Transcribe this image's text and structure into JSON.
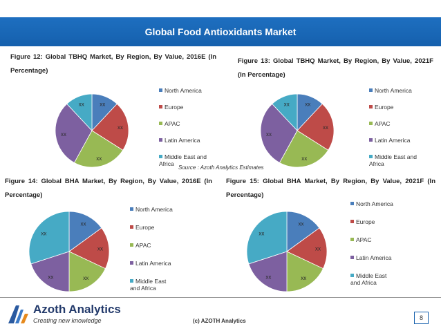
{
  "header": {
    "title": "Global Food Antioxidants Market"
  },
  "colors": {
    "north_america": "#4a7ebb",
    "europe": "#be4b48",
    "apac": "#98b954",
    "latin_america": "#7d60a0",
    "middle_east_africa": "#46aac5"
  },
  "figures": [
    {
      "title": "Figure 12: Global TBHQ Market, By Region, By Value, 2016E (In Percentage)",
      "legend": [
        "North America",
        "Europe",
        "APAC",
        "Latin America",
        "Middle East and Africa"
      ],
      "slice_labels": [
        "xx",
        "xx",
        "xx",
        "xx",
        "xx"
      ]
    },
    {
      "title": "Figure 13: Global TBHQ Market, By Region, By Value, 2021F (In Percentage)",
      "legend": [
        "North America",
        "Europe",
        "APAC",
        "Latin America",
        "Middle East and Africa"
      ],
      "slice_labels": [
        "xx",
        "xx",
        "xx",
        "xx",
        "xx"
      ]
    },
    {
      "title": "Figure 14: Global BHA Market, By Region, By Value, 2016E (In Percentage)",
      "legend": [
        "North America",
        "Europe",
        "APAC",
        "Latin America",
        "Middle East and Africa"
      ],
      "slice_labels": [
        "xx",
        "xx",
        "xx",
        "xx",
        "xx"
      ]
    },
    {
      "title": "Figure 15: Global BHA Market, By Region, By Value, 2021F (In Percentage)",
      "legend": [
        "North America",
        "Europe",
        "APAC",
        "Latin America",
        "Middle East and Africa"
      ],
      "slice_labels": [
        "xx",
        "xx",
        "xx",
        "xx",
        "xx"
      ]
    }
  ],
  "chart_data": [
    {
      "type": "pie",
      "title": "Figure 12: Global TBHQ Market, By Region, By Value, 2016E (In Percentage)",
      "categories": [
        "North America",
        "Europe",
        "APAC",
        "Latin America",
        "Middle East and Africa"
      ],
      "values": [
        12,
        22,
        24,
        30,
        12
      ]
    },
    {
      "type": "pie",
      "title": "Figure 13: Global TBHQ Market, By Region, By Value, 2021F (In Percentage)",
      "categories": [
        "North America",
        "Europe",
        "APAC",
        "Latin America",
        "Middle East and Africa"
      ],
      "values": [
        12,
        22,
        24,
        30,
        12
      ]
    },
    {
      "type": "pie",
      "title": "Figure 14: Global BHA Market, By Region, By Value, 2016E (In Percentage)",
      "categories": [
        "North America",
        "Europe",
        "APAC",
        "Latin America",
        "Middle East and Africa"
      ],
      "values": [
        15,
        17,
        18,
        20,
        30
      ]
    },
    {
      "type": "pie",
      "title": "Figure 15: Global BHA Market, By Region, By Value, 2021F (In Percentage)",
      "categories": [
        "North America",
        "Europe",
        "APAC",
        "Latin America",
        "Middle East and Africa"
      ],
      "values": [
        15,
        17,
        18,
        20,
        30
      ]
    }
  ],
  "source": "Source : Azoth Analytics Estimates",
  "footer": {
    "brand": "Azoth Analytics",
    "tagline": "Creating new knowledge",
    "copyright": "(c) AZOTH Analytics",
    "page": "8"
  }
}
